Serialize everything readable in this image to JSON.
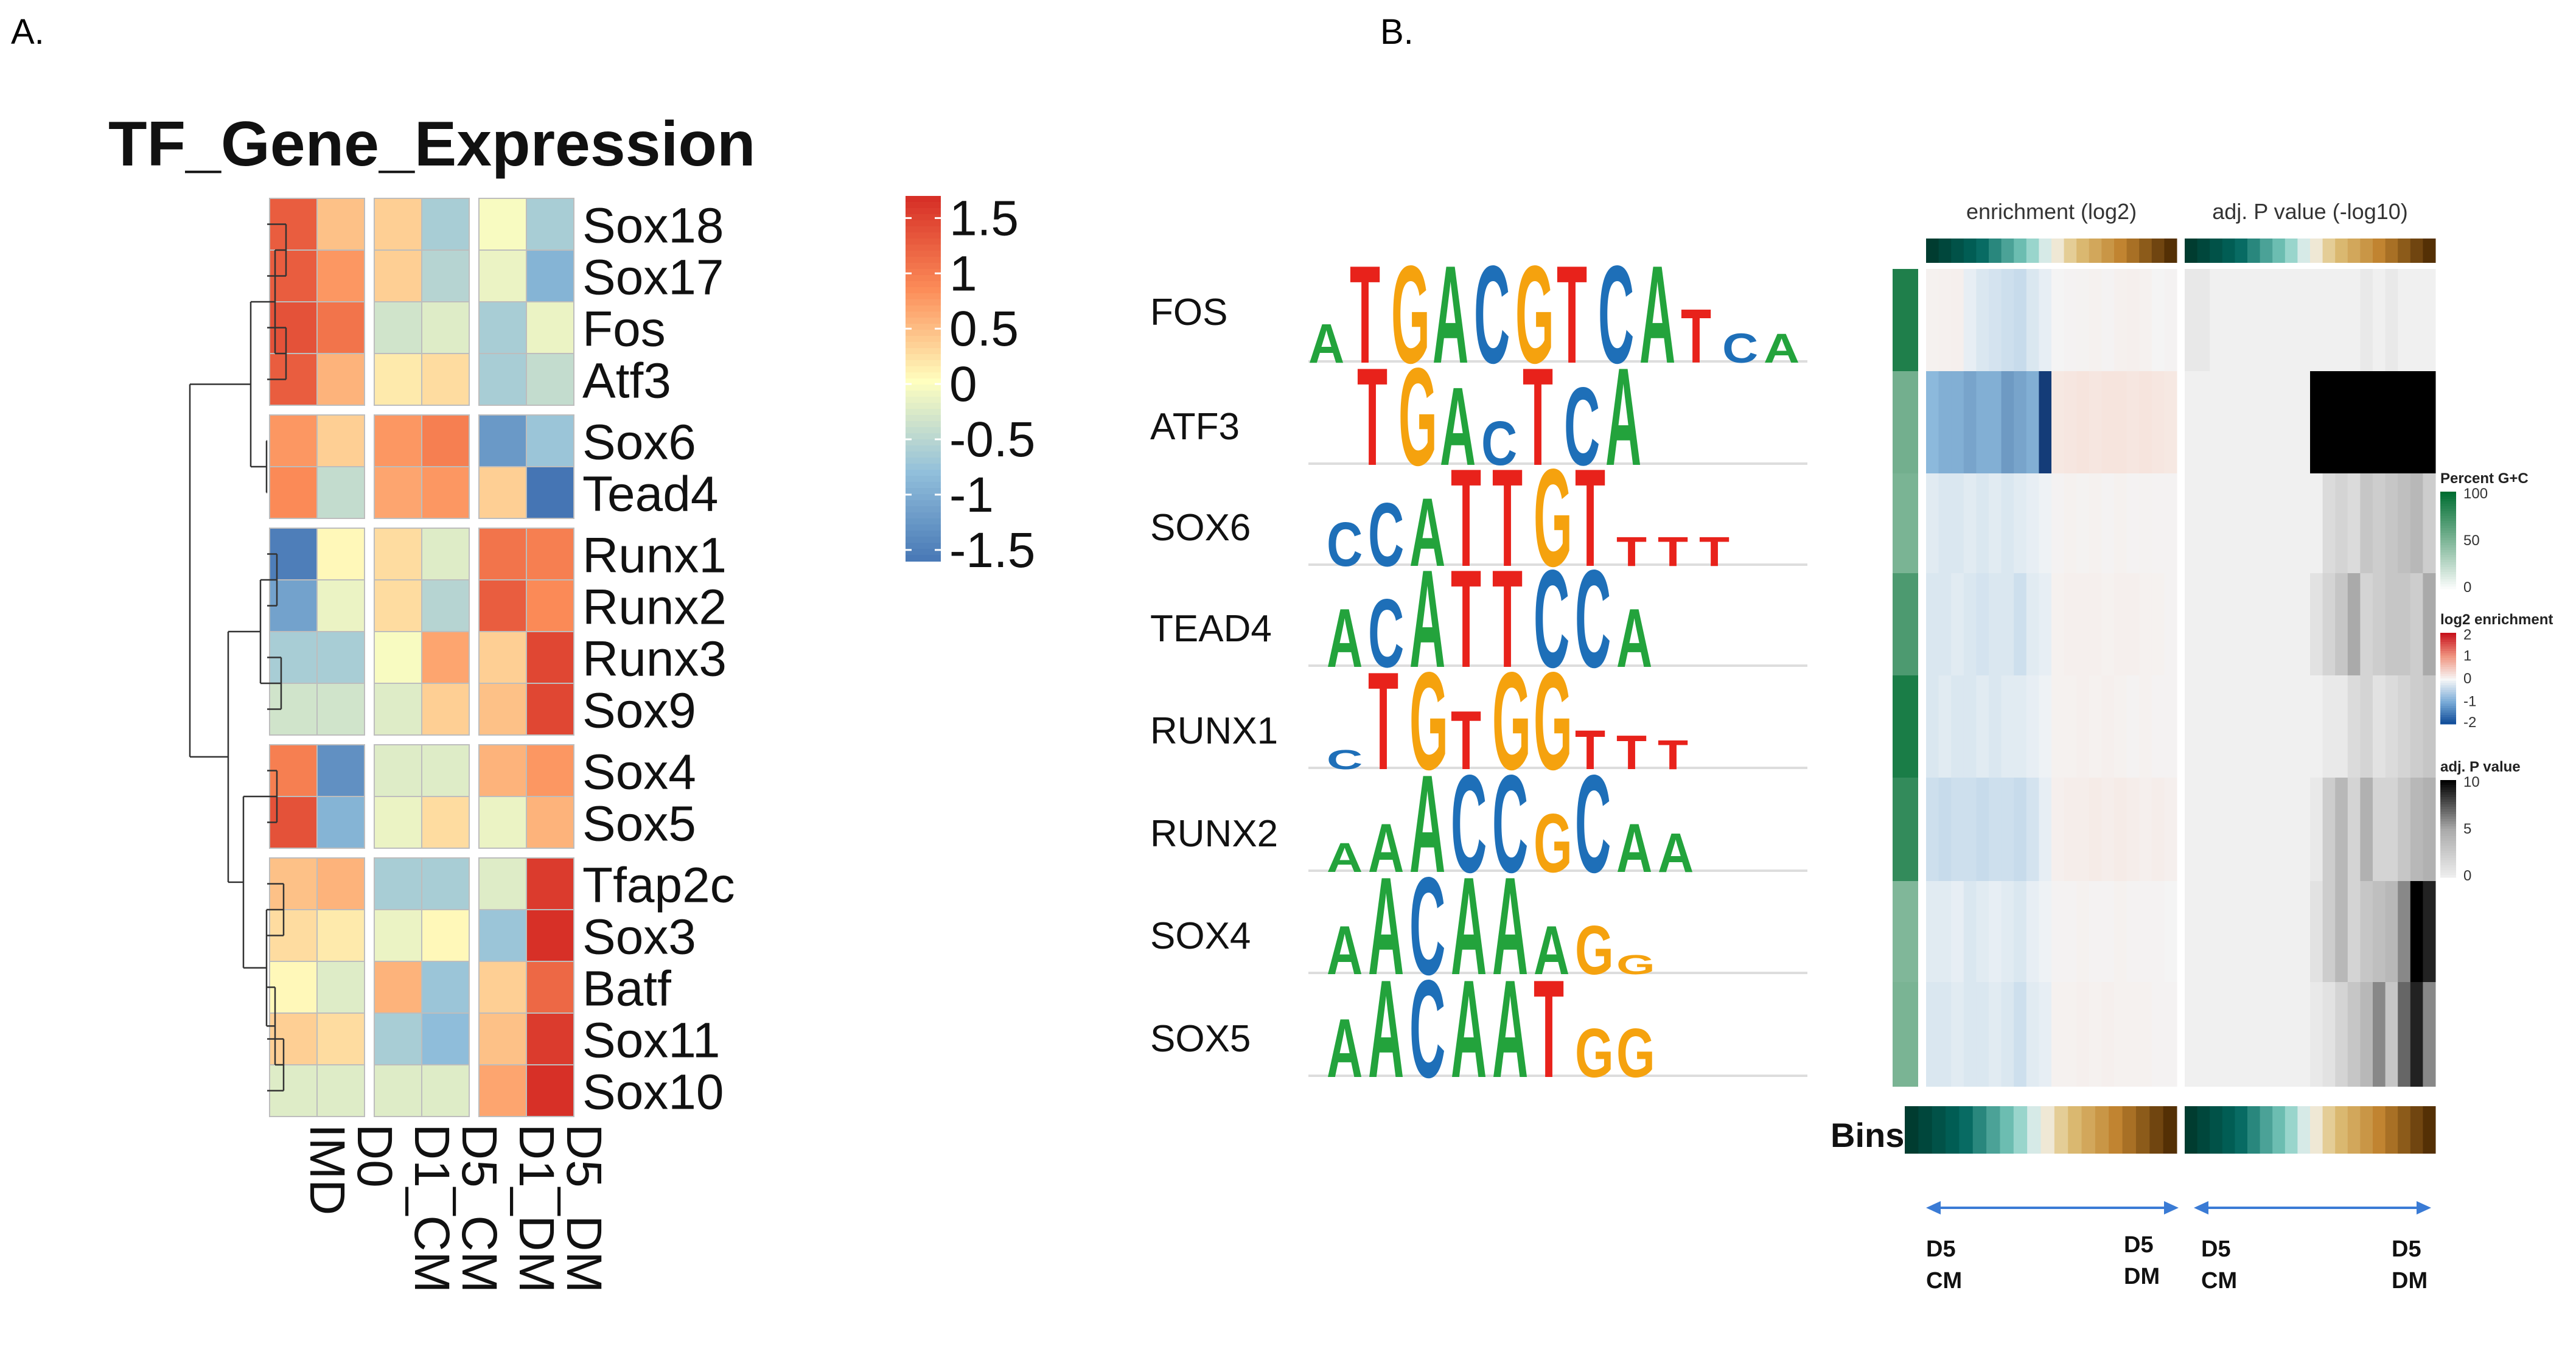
{
  "panel_a_label": "A.",
  "panel_b_label": "B.",
  "chart_data": [
    {
      "type": "heatmap",
      "title": "TF_Gene_Expression",
      "rows": [
        "Sox18",
        "Sox17",
        "Fos",
        "Atf3",
        "Sox6",
        "Tead4",
        "Runx1",
        "Runx2",
        "Runx3",
        "Sox9",
        "Sox4",
        "Sox5",
        "Tfap2c",
        "Sox3",
        "Batf",
        "Sox11",
        "Sox10"
      ],
      "columns": [
        "IMD",
        "D0",
        "D1_CM",
        "D5_CM",
        "D1_DM",
        "D5_DM"
      ],
      "values": [
        [
          1.3,
          0.5,
          0.4,
          -0.6,
          0.0,
          -0.6
        ],
        [
          1.3,
          0.8,
          0.4,
          -0.5,
          -0.1,
          -0.9
        ],
        [
          1.4,
          1.1,
          -0.3,
          -0.2,
          -0.6,
          -0.1
        ],
        [
          1.3,
          0.6,
          0.2,
          0.3,
          -0.6,
          -0.4
        ],
        [
          0.8,
          0.4,
          0.8,
          1.0,
          -1.2,
          -0.7
        ],
        [
          0.9,
          -0.4,
          0.7,
          0.8,
          0.4,
          -1.6
        ],
        [
          -1.5,
          0.1,
          0.3,
          -0.2,
          1.1,
          1.0
        ],
        [
          -1.1,
          -0.1,
          0.3,
          -0.5,
          1.3,
          0.9
        ],
        [
          -0.6,
          -0.6,
          0.0,
          0.7,
          0.4,
          1.5
        ],
        [
          -0.3,
          -0.3,
          -0.2,
          0.4,
          0.5,
          1.5
        ],
        [
          1.0,
          -1.3,
          -0.2,
          -0.2,
          0.6,
          0.8
        ],
        [
          1.4,
          -0.9,
          -0.1,
          0.3,
          -0.1,
          0.6
        ],
        [
          0.5,
          0.6,
          -0.6,
          -0.6,
          -0.2,
          1.6
        ],
        [
          0.3,
          0.2,
          -0.1,
          0.1,
          -0.7,
          1.7
        ],
        [
          0.1,
          -0.2,
          0.6,
          -0.7,
          0.4,
          1.2
        ],
        [
          0.4,
          0.3,
          -0.6,
          -0.8,
          0.5,
          1.6
        ],
        [
          -0.2,
          -0.2,
          -0.2,
          -0.2,
          0.7,
          1.7
        ]
      ],
      "legend_ticks": [
        "1.5",
        "1",
        "0.5",
        "0",
        "-0.5",
        "-1",
        "-1.5"
      ],
      "legend_range": [
        -1.6,
        1.7
      ]
    },
    {
      "type": "heatmap",
      "motifs": [
        {
          "name": "FOS",
          "letters": [
            {
              "c": "A",
              "h": 0.4
            },
            {
              "c": "T",
              "h": 1
            },
            {
              "c": "G",
              "h": 1
            },
            {
              "c": "A",
              "h": 1
            },
            {
              "c": "C",
              "h": 1
            },
            {
              "c": "G",
              "h": 1
            },
            {
              "c": "T",
              "h": 1
            },
            {
              "c": "C",
              "h": 1
            },
            {
              "c": "A",
              "h": 1
            },
            {
              "c": "T",
              "h": 0.55
            },
            {
              "c": "C",
              "h": 0.3
            },
            {
              "c": "A",
              "h": 0.3
            }
          ]
        },
        {
          "name": "ATF3",
          "letters": [
            {
              "c": "T",
              "h": 1
            },
            {
              "c": "G",
              "h": 1
            },
            {
              "c": "A",
              "h": 0.8
            },
            {
              "c": "C",
              "h": 0.45
            },
            {
              "c": "T",
              "h": 1
            },
            {
              "c": "C",
              "h": 0.8
            },
            {
              "c": "A",
              "h": 1
            }
          ]
        },
        {
          "name": "SOX6",
          "letters": [
            {
              "c": "C",
              "h": 0.45
            },
            {
              "c": "C",
              "h": 0.65
            },
            {
              "c": "A",
              "h": 0.7
            },
            {
              "c": "T",
              "h": 1
            },
            {
              "c": "T",
              "h": 1
            },
            {
              "c": "G",
              "h": 1
            },
            {
              "c": "T",
              "h": 1
            },
            {
              "c": "T",
              "h": 0.3
            },
            {
              "c": "T",
              "h": 0.3
            },
            {
              "c": "T",
              "h": 0.3
            }
          ]
        },
        {
          "name": "TEAD4",
          "letters": [
            {
              "c": "A",
              "h": 0.6
            },
            {
              "c": "C",
              "h": 0.7
            },
            {
              "c": "A",
              "h": 1
            },
            {
              "c": "T",
              "h": 1
            },
            {
              "c": "T",
              "h": 1
            },
            {
              "c": "C",
              "h": 1
            },
            {
              "c": "C",
              "h": 1
            },
            {
              "c": "A",
              "h": 0.6
            }
          ]
        },
        {
          "name": "RUNX1",
          "letters": [
            {
              "c": "C",
              "h": 0.2
            },
            {
              "c": "T",
              "h": 1
            },
            {
              "c": "G",
              "h": 1
            },
            {
              "c": "T",
              "h": 0.6
            },
            {
              "c": "G",
              "h": 1
            },
            {
              "c": "G",
              "h": 1
            },
            {
              "c": "T",
              "h": 0.4
            },
            {
              "c": "T",
              "h": 0.35
            },
            {
              "c": "T",
              "h": 0.3
            }
          ]
        },
        {
          "name": "RUNX2",
          "letters": [
            {
              "c": "A",
              "h": 0.3
            },
            {
              "c": "A",
              "h": 0.5
            },
            {
              "c": "A",
              "h": 1
            },
            {
              "c": "C",
              "h": 1
            },
            {
              "c": "C",
              "h": 1
            },
            {
              "c": "G",
              "h": 0.6
            },
            {
              "c": "C",
              "h": 1
            },
            {
              "c": "A",
              "h": 0.5
            },
            {
              "c": "A",
              "h": 0.4
            }
          ]
        },
        {
          "name": "SOX4",
          "letters": [
            {
              "c": "A",
              "h": 0.5
            },
            {
              "c": "A",
              "h": 1
            },
            {
              "c": "C",
              "h": 1
            },
            {
              "c": "A",
              "h": 1
            },
            {
              "c": "A",
              "h": 1
            },
            {
              "c": "A",
              "h": 0.5
            },
            {
              "c": "G",
              "h": 0.5
            },
            {
              "c": "G",
              "h": 0.2
            }
          ]
        },
        {
          "name": "SOX5",
          "letters": [
            {
              "c": "A",
              "h": 0.6
            },
            {
              "c": "A",
              "h": 1
            },
            {
              "c": "C",
              "h": 1
            },
            {
              "c": "A",
              "h": 1
            },
            {
              "c": "A",
              "h": 1
            },
            {
              "c": "T",
              "h": 1
            },
            {
              "c": "G",
              "h": 0.5
            },
            {
              "c": "G",
              "h": 0.5
            }
          ]
        }
      ],
      "letter_colors": {
        "A": "#23a33c",
        "C": "#1e6fb8",
        "G": "#f5a20e",
        "T": "#e8221b"
      },
      "enrichment_header": "enrichment (log2)",
      "pvalue_header": "adj. P value (-log10)",
      "bins_label": "Bins",
      "bins_count": 20,
      "gc_percent": [
        88,
        55,
        52,
        70,
        90,
        80,
        50,
        52
      ],
      "enrichment": [
        [
          0.15,
          0.18,
          0.2,
          -0.1,
          -0.2,
          -0.25,
          -0.3,
          -0.35,
          -0.2,
          -0.1,
          0.05,
          0.1,
          0.12,
          0.15,
          0.1,
          0.18,
          0.2,
          0.15,
          0.05,
          0.1
        ],
        [
          -0.8,
          -0.9,
          -0.9,
          -1.0,
          -0.9,
          -0.9,
          -1.1,
          -1.0,
          -0.9,
          -2.0,
          0.4,
          0.45,
          0.5,
          0.45,
          0.5,
          0.5,
          0.45,
          0.5,
          0.45,
          0.4
        ],
        [
          -0.15,
          -0.2,
          -0.2,
          -0.15,
          -0.2,
          -0.15,
          -0.2,
          -0.15,
          -0.1,
          -0.05,
          0.1,
          0.15,
          0.12,
          0.15,
          0.1,
          0.15,
          0.1,
          0.12,
          0.1,
          0.1
        ],
        [
          -0.2,
          -0.2,
          -0.15,
          -0.2,
          -0.25,
          -0.2,
          -0.2,
          -0.3,
          -0.15,
          -0.1,
          0.15,
          0.2,
          0.2,
          0.2,
          0.15,
          0.2,
          0.2,
          0.15,
          0.15,
          0.1
        ],
        [
          -0.2,
          -0.15,
          -0.2,
          -0.2,
          -0.15,
          -0.2,
          -0.15,
          -0.15,
          -0.1,
          -0.05,
          0.15,
          0.15,
          0.2,
          0.15,
          0.2,
          0.15,
          0.1,
          0.15,
          0.1,
          0.1
        ],
        [
          -0.3,
          -0.35,
          -0.3,
          -0.3,
          -0.35,
          -0.3,
          -0.3,
          -0.35,
          -0.25,
          -0.1,
          0.2,
          0.25,
          0.25,
          0.3,
          0.25,
          0.3,
          0.25,
          0.2,
          0.25,
          0.2
        ],
        [
          -0.15,
          -0.15,
          -0.1,
          -0.2,
          -0.15,
          -0.1,
          -0.15,
          -0.2,
          -0.1,
          -0.05,
          0.1,
          0.1,
          0.15,
          0.1,
          0.1,
          0.15,
          0.1,
          0.1,
          0.1,
          0.05
        ],
        [
          -0.2,
          -0.2,
          -0.15,
          -0.2,
          -0.2,
          -0.15,
          -0.2,
          -0.3,
          -0.15,
          -0.1,
          0.15,
          0.15,
          0.2,
          0.15,
          0.2,
          0.15,
          0.15,
          0.15,
          0.1,
          0.1
        ]
      ],
      "pvalue": [
        [
          0.6,
          0.6,
          0,
          0,
          0,
          0,
          0,
          0,
          0,
          0,
          0,
          0,
          0,
          0,
          0.5,
          0,
          0.5,
          0,
          0,
          0
        ],
        [
          0,
          0,
          0,
          0,
          0,
          0,
          0,
          0,
          0,
          0,
          10,
          10,
          10,
          10,
          10,
          10,
          10,
          10,
          10,
          10
        ],
        [
          0,
          0,
          0,
          0,
          0,
          0,
          0,
          0,
          0,
          0,
          0,
          1.5,
          2,
          1.5,
          3,
          2.5,
          3,
          3.5,
          4,
          2.5
        ],
        [
          0,
          0,
          0,
          0,
          0,
          0,
          0,
          0,
          0,
          0,
          1,
          2,
          3,
          5,
          2,
          2.5,
          3,
          3,
          2.5,
          5
        ],
        [
          0,
          0,
          0,
          0,
          0,
          0,
          0,
          0,
          0,
          0,
          0,
          0.5,
          0.5,
          1.5,
          2,
          1,
          1.5,
          2,
          2.5,
          3
        ],
        [
          0,
          0,
          0,
          0,
          0,
          0,
          0,
          0,
          0,
          0,
          0.5,
          2.5,
          4,
          2,
          4.5,
          2,
          2,
          3,
          4,
          4.5
        ],
        [
          0,
          0,
          0,
          0,
          0,
          0,
          0,
          0,
          0,
          0,
          1,
          2.5,
          4,
          2,
          3,
          3.5,
          4,
          6,
          10,
          9
        ],
        [
          0,
          0,
          0,
          0,
          0,
          0,
          0,
          0,
          0,
          0,
          0.5,
          1,
          2,
          3,
          4,
          6,
          3,
          7,
          9,
          6
        ]
      ],
      "legends": {
        "gc_title": "Percent G+C",
        "gc_ticks": [
          "100",
          "50",
          "0"
        ],
        "enrich_title": "log2 enrichment",
        "enrich_ticks": [
          "2",
          "1",
          "0",
          "-1",
          "-2"
        ],
        "pval_title": "adj. P value",
        "pval_ticks": [
          "10",
          "5",
          "0"
        ]
      },
      "axis_left_label": "D5\nCM",
      "axis_right_label": "D5\nDM",
      "axis_left_lines": [
        "D5",
        "CM"
      ],
      "axis_right_lines": [
        "D5",
        "DM"
      ]
    }
  ]
}
